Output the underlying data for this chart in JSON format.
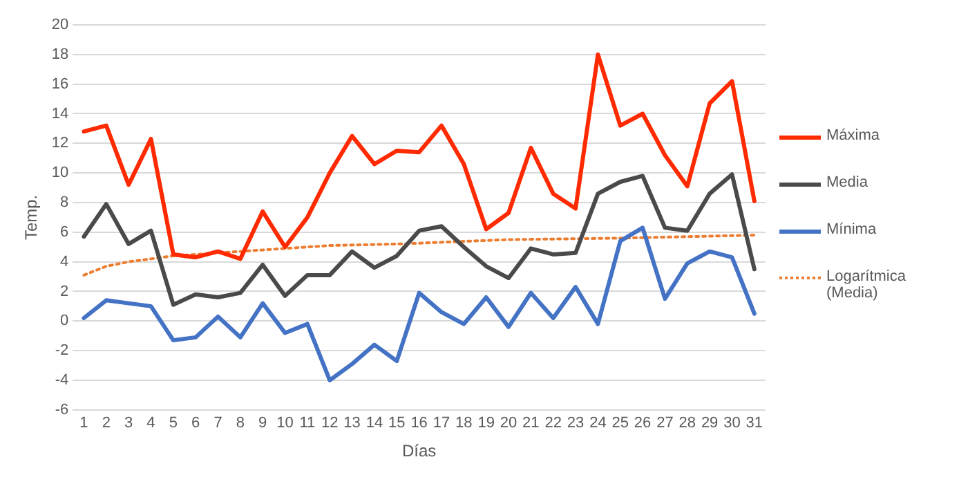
{
  "chart_data": {
    "type": "line",
    "xlabel": "Días",
    "ylabel": "Temp.",
    "x": [
      1,
      2,
      3,
      4,
      5,
      6,
      7,
      8,
      9,
      10,
      11,
      12,
      13,
      14,
      15,
      16,
      17,
      18,
      19,
      20,
      21,
      22,
      23,
      24,
      25,
      26,
      27,
      28,
      29,
      30,
      31
    ],
    "xlim": [
      0.5,
      31.5
    ],
    "xticks": [
      1,
      2,
      3,
      4,
      5,
      6,
      7,
      8,
      9,
      10,
      11,
      12,
      13,
      14,
      15,
      16,
      17,
      18,
      19,
      20,
      21,
      22,
      23,
      24,
      25,
      26,
      27,
      28,
      29,
      30,
      31
    ],
    "ylim": [
      -6,
      20
    ],
    "yticks": [
      -6,
      -4,
      -2,
      0,
      2,
      4,
      6,
      8,
      10,
      12,
      14,
      16,
      18,
      20
    ],
    "grid": "y",
    "legend": "right",
    "marker": "none",
    "line_style": "solid",
    "series": [
      {
        "name": "Máxima",
        "color": "#ff2a00",
        "values": [
          12.8,
          13.2,
          9.2,
          12.3,
          4.5,
          4.3,
          4.7,
          4.2,
          7.4,
          5.0,
          7.0,
          10.0,
          12.5,
          10.6,
          11.5,
          11.4,
          13.2,
          10.6,
          6.2,
          7.3,
          11.7,
          8.6,
          7.6,
          18.0,
          13.2,
          14.0,
          11.2,
          9.1,
          14.7,
          16.2,
          8.1
        ]
      },
      {
        "name": "Media",
        "color": "#4a4a4a",
        "values": [
          5.7,
          7.9,
          5.2,
          6.1,
          1.1,
          1.8,
          1.6,
          1.9,
          3.8,
          1.7,
          3.1,
          3.1,
          4.7,
          3.6,
          4.4,
          6.1,
          6.4,
          5.0,
          3.7,
          2.9,
          4.9,
          4.5,
          4.6,
          8.6,
          9.4,
          9.8,
          6.3,
          6.1,
          8.6,
          9.9,
          3.5
        ]
      },
      {
        "name": "Mínima",
        "color": "#4472c4",
        "values": [
          0.2,
          1.4,
          1.2,
          1.0,
          -1.3,
          -1.1,
          0.3,
          -1.1,
          1.2,
          -0.8,
          -0.2,
          -4.0,
          -2.9,
          -1.6,
          -2.7,
          1.9,
          0.6,
          -0.2,
          1.6,
          -0.4,
          1.9,
          0.2,
          2.3,
          -0.2,
          5.4,
          6.3,
          1.5,
          3.9,
          4.7,
          4.3,
          0.5
        ]
      },
      {
        "name": "Logarítmica (Media)",
        "color": "#ed7d31",
        "line_style": "dotted",
        "x": [
          1,
          2,
          3,
          4,
          5,
          6,
          8,
          10,
          12,
          15,
          20,
          25,
          31
        ],
        "values": [
          3.1,
          3.7,
          4.0,
          4.2,
          4.4,
          4.5,
          4.7,
          4.9,
          5.1,
          5.2,
          5.5,
          5.6,
          5.8
        ]
      }
    ]
  }
}
